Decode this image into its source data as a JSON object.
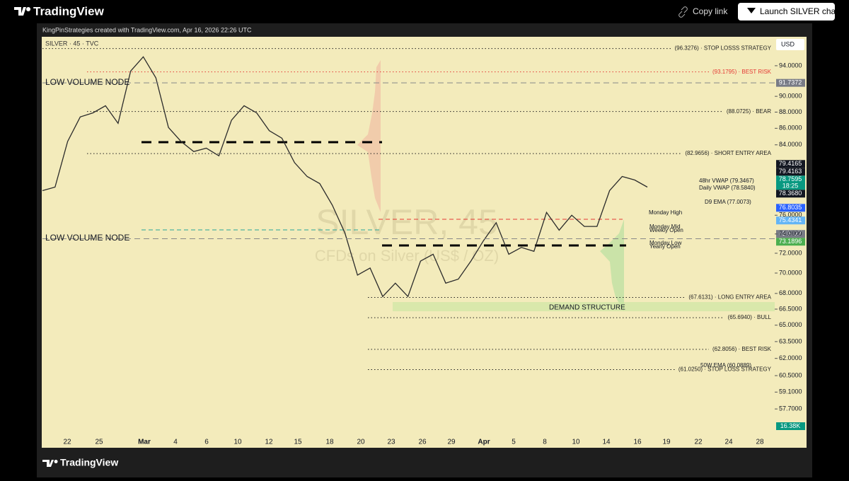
{
  "header": {
    "logo": "TradingView",
    "copy_link": "Copy link",
    "launch_button": "Launch SILVER chart"
  },
  "snapshot_caption": "KingPinStrategies created with TradingView.com, Apr 16, 2026 22:26 UTC",
  "footer_logo": "TradingView",
  "chart": {
    "symbol": "SILVER · 45 · TVC",
    "currency": "USD",
    "watermark_title": "SILVER, 45",
    "watermark_subtitle": "CFDs on Silver (US$ / OZ)",
    "log_scale": true,
    "ylim": [
      55.6,
      97.95
    ],
    "yticks": [
      {
        "value": 94,
        "label": "94.0000"
      },
      {
        "value": 90,
        "label": "90.0000"
      },
      {
        "value": 88,
        "label": "88.0000"
      },
      {
        "value": 86,
        "label": "86.0000"
      },
      {
        "value": 84,
        "label": "84.0000"
      },
      {
        "value": 76,
        "label": "76.0000"
      },
      {
        "value": 74,
        "label": "74.0000"
      },
      {
        "value": 72,
        "label": "72.0000"
      },
      {
        "value": 70,
        "label": "70.0000"
      },
      {
        "value": 68,
        "label": "68.0000"
      },
      {
        "value": 66.5,
        "label": "66.5000"
      },
      {
        "value": 65,
        "label": "65.0000"
      },
      {
        "value": 63.5,
        "label": "63.5000"
      },
      {
        "value": 62,
        "label": "62.0000"
      },
      {
        "value": 60.5,
        "label": "60.5000"
      },
      {
        "value": 59.1,
        "label": "59.1000"
      },
      {
        "value": 57.7,
        "label": "57.7000"
      }
    ],
    "x_labels": [
      "22",
      "25",
      "Mar",
      "4",
      "6",
      "10",
      "12",
      "15",
      "18",
      "20",
      "23",
      "26",
      "29",
      "Apr",
      "5",
      "8",
      "10",
      "14",
      "16",
      "19",
      "22",
      "24",
      "28"
    ],
    "price_path": [
      78.7,
      79.1,
      84.4,
      87.4,
      87.9,
      88.8,
      86.6,
      93.3,
      95.2,
      92.4,
      86.1,
      84.4,
      83.2,
      83.6,
      82.7,
      87.0,
      88.8,
      87.9,
      85.7,
      84.8,
      81.9,
      80.3,
      79.5,
      77.1,
      74.1,
      69.8,
      70.5,
      67.7,
      69.0,
      67.7,
      71.2,
      71.9,
      69.0,
      69.4,
      71.2,
      73.3,
      75.2,
      71.9,
      72.6,
      72.2,
      76.3,
      74.4,
      76.0,
      74.8,
      74.8,
      78.7,
      80.3,
      79.9,
      79.1
    ],
    "levels": [
      {
        "value": 96.3276,
        "label": "(96.3276) · STOP LOSSS STRATEGY",
        "color": "#222222"
      },
      {
        "value": 93.1795,
        "label": "(93.1795) · BEST RISK",
        "color": "#e53935"
      },
      {
        "value": 88.0725,
        "label": "(88.0725) · BEAR",
        "color": "#222222"
      },
      {
        "value": 82.9656,
        "label": "(82.9656) · SHORT ENTRY AREA",
        "color": "#222222"
      },
      {
        "value": 67.6131,
        "label": "(67.6131) · LONG ENTRY AREA",
        "color": "#222222"
      },
      {
        "value": 65.694,
        "label": "(65.6940) · BULL",
        "color": "#222222"
      },
      {
        "value": 62.8056,
        "label": "(62.8056) · BEST RISK",
        "color": "#222222"
      },
      {
        "value": 61.025,
        "label": "(61.0250) · STOP LOSS STRATEGY",
        "color": "#222222"
      }
    ],
    "price_labels": [
      {
        "value": 91.7372,
        "label": "91.7372",
        "color": "#787b86",
        "dashed_line": true
      },
      {
        "value": 79.4165,
        "label": "79.4165",
        "color": "#131722"
      },
      {
        "value": 79.4163,
        "label": "79.4163",
        "color": "#131722"
      },
      {
        "value": 78.7595,
        "label": "78.7595",
        "color": "#089981",
        "countdown": "18:25"
      },
      {
        "value": 78.368,
        "label": "78.3680",
        "color": "#131722"
      },
      {
        "value": 76.8035,
        "label": "76.8035",
        "color": "#2962ff"
      },
      {
        "value": 75.4341,
        "label": "75.4341",
        "color": "#64b5f6"
      },
      {
        "value": 73.5027,
        "label": "73.5027",
        "color": "#787b86",
        "dashed_line": true
      },
      {
        "value": 73.1896,
        "label": "73.1896",
        "color": "#4caf50"
      }
    ],
    "volume_label": "16.38K",
    "annotations": [
      "LOW VOLUME NODE",
      "LOW VOLUME NODE",
      "DEMAND STRUCTURE",
      "48hr VWAP (79.3467)",
      "Daily VWAP (78.5840)",
      "D9 EMA (77.0073)",
      "Monday High",
      "Monday Mid",
      "Weekly Open",
      "Monday Low",
      "Yearly Open",
      "50W EMA (60.0889)"
    ]
  }
}
